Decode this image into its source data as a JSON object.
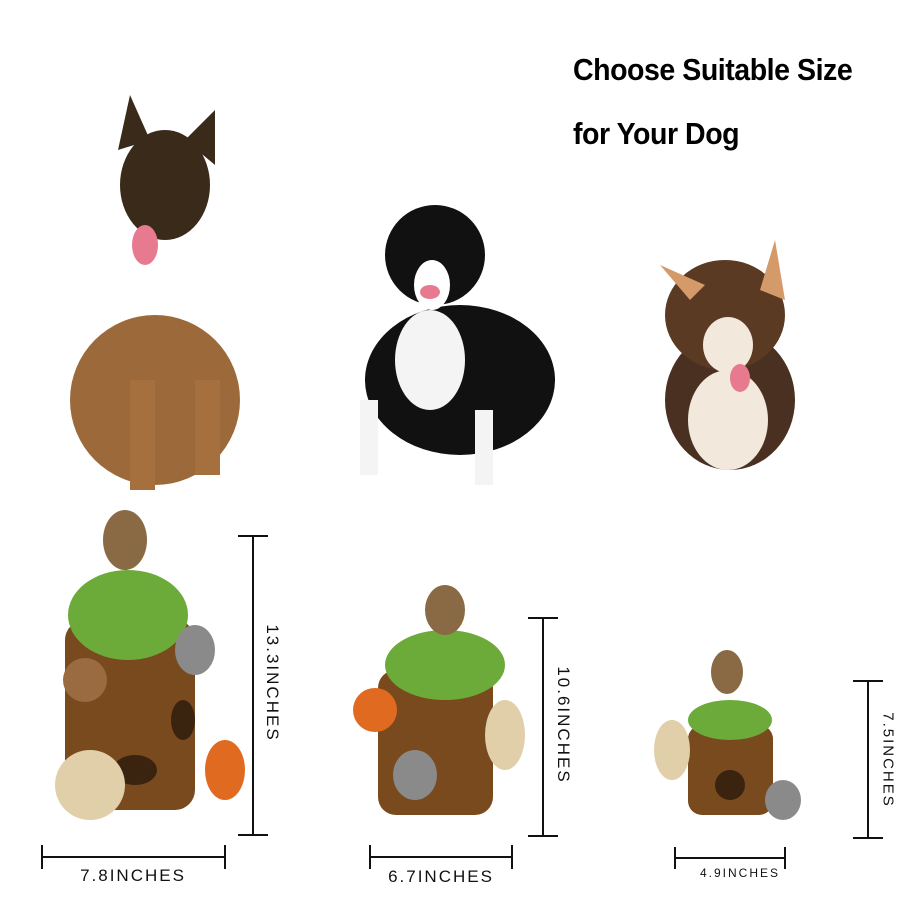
{
  "heading": {
    "line1": "Choose Suitable Size",
    "line2": "for Your Dog"
  },
  "products": [
    {
      "size": "large",
      "height_label": "13.3INCHES",
      "width_label": "7.8INCHES"
    },
    {
      "size": "medium",
      "height_label": "10.6INCHES",
      "width_label": "6.7INCHES"
    },
    {
      "size": "small",
      "height_label": "7.5INCHES",
      "width_label": "4.9INCHES"
    }
  ],
  "colors": {
    "trunk": "#7a4a1f",
    "grass": "#6cab3a",
    "line": "#111111"
  }
}
